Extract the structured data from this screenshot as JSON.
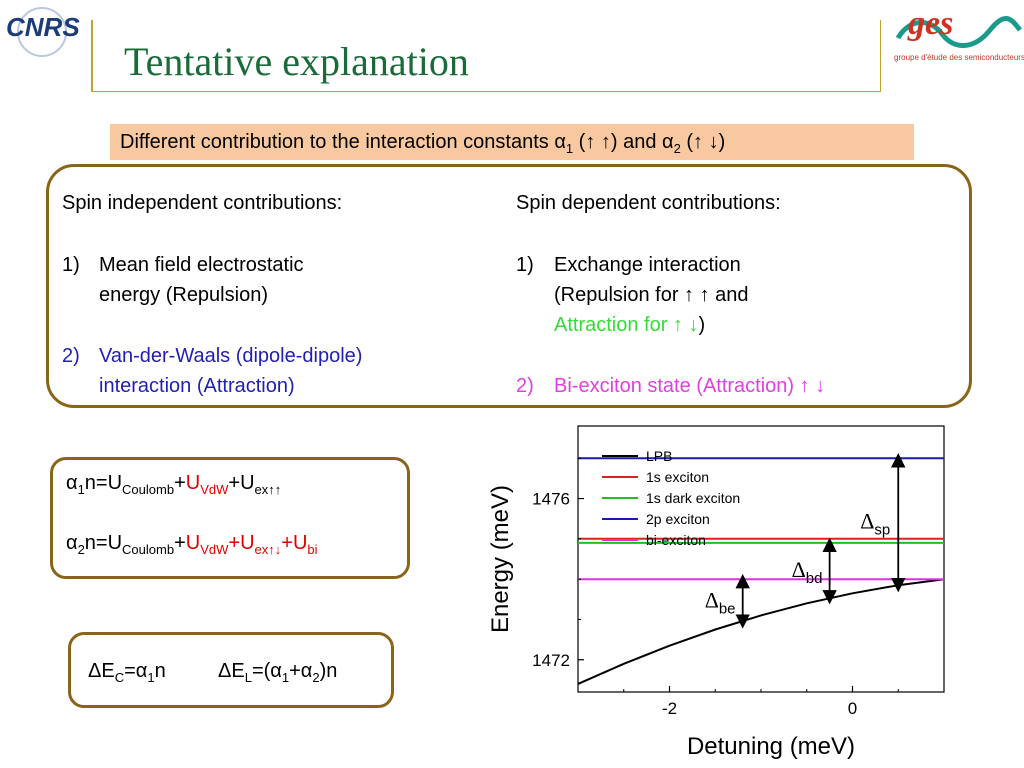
{
  "header": {
    "title": "Tentative explanation",
    "logo_left": "CNRS",
    "logo_right": "ges",
    "logo_right_caption": "groupe d'étude des semiconducteurs"
  },
  "banner": {
    "text_before": "Different contribution to the interaction constants ",
    "alpha": "α",
    "sub1": "1",
    "pair1": " (↑ ↑) and ",
    "sub2": "2",
    "pair2": " (↑ ↓)"
  },
  "left_column": {
    "heading": "Spin independent contributions:",
    "item1_num": "1)",
    "item1_line1": "Mean field electrostatic",
    "item1_line2": "energy (Repulsion)",
    "item2_num": "2)",
    "item2_line1": "Van-der-Waals (dipole-dipole)",
    "item2_line2": "interaction (Attraction)"
  },
  "right_column": {
    "heading": "Spin dependent contributions:",
    "item1_num": "1)",
    "item1_line1": "Exchange interaction",
    "item1_line2": "(Repulsion for ↑ ↑ and",
    "item1_line3_colored": "Attraction for ↑ ↓",
    "item1_line3_end": ")",
    "item2_num": "2)",
    "item2_text": "Bi-exciton state (Attraction) ↑ ↓"
  },
  "formulas": {
    "alpha": "α",
    "f1_sub_alpha": "1",
    "f1_n": "n=U",
    "f1_sub_coulomb": "Coulomb",
    "plus": "+",
    "u": "U",
    "f1_sub_vdw": "VdW",
    "f1_sub_ex": "ex↑↑",
    "f2_sub_alpha": "2",
    "f2_n": "n=U",
    "f2_sub_coulomb": "Coulomb",
    "f2_sub_vdw": "VdW",
    "f2_sub_ex": "ex↑↓",
    "f2_sub_bi": "bi"
  },
  "energy": {
    "delta": "Δ",
    "e": "E",
    "sub_c": "C",
    "eq": "=",
    "sub_1": "1",
    "n": "n",
    "sub_l": "L",
    "open": "=(",
    "plus": "+",
    "sub_2": "2",
    "close": ")n"
  },
  "chart_data": {
    "type": "line",
    "xlabel": "Detuning (meV)",
    "ylabel": "Energy (meV)",
    "xlim": [
      -3.0,
      1.0
    ],
    "ylim": [
      1471.2,
      1477.8
    ],
    "xticks": [
      "-2",
      "0"
    ],
    "xtick_values": [
      -2,
      0
    ],
    "yticks": [
      "1472",
      "1476"
    ],
    "ytick_values": [
      1472,
      1476
    ],
    "legend_position": "top-right",
    "series": [
      {
        "name": "LPB",
        "color": "#000000",
        "x": [
          -3.0,
          -2.5,
          -2.0,
          -1.5,
          -1.0,
          -0.5,
          0.0,
          0.5,
          1.0
        ],
        "y": [
          1471.4,
          1471.9,
          1472.35,
          1472.75,
          1473.1,
          1473.4,
          1473.65,
          1473.85,
          1474.0
        ]
      },
      {
        "name": "1s exciton",
        "color": "#e02020",
        "x": [
          -3.0,
          1.0
        ],
        "y": [
          1475.0,
          1475.0
        ]
      },
      {
        "name": "1s dark exciton",
        "color": "#20c020",
        "x": [
          -3.0,
          1.0
        ],
        "y": [
          1474.9,
          1474.9
        ]
      },
      {
        "name": "2p exciton",
        "color": "#1a1ab0",
        "x": [
          -3.0,
          1.0
        ],
        "y": [
          1477.0,
          1477.0
        ]
      },
      {
        "name": "bi-exciton",
        "color": "#e030e0",
        "x": [
          -3.0,
          1.0
        ],
        "y": [
          1474.0,
          1474.0
        ]
      }
    ],
    "annotations": [
      {
        "delta": "Δ",
        "sub": "be",
        "x": -1.2,
        "y_from": 1474.0,
        "y_to": 1472.9
      },
      {
        "delta": "Δ",
        "sub": "bd",
        "x": -0.25,
        "y_from": 1474.9,
        "y_to": 1473.5
      },
      {
        "delta": "Δ",
        "sub": "sp",
        "x": 0.5,
        "y_from": 1477.0,
        "y_to": 1473.8
      }
    ]
  }
}
